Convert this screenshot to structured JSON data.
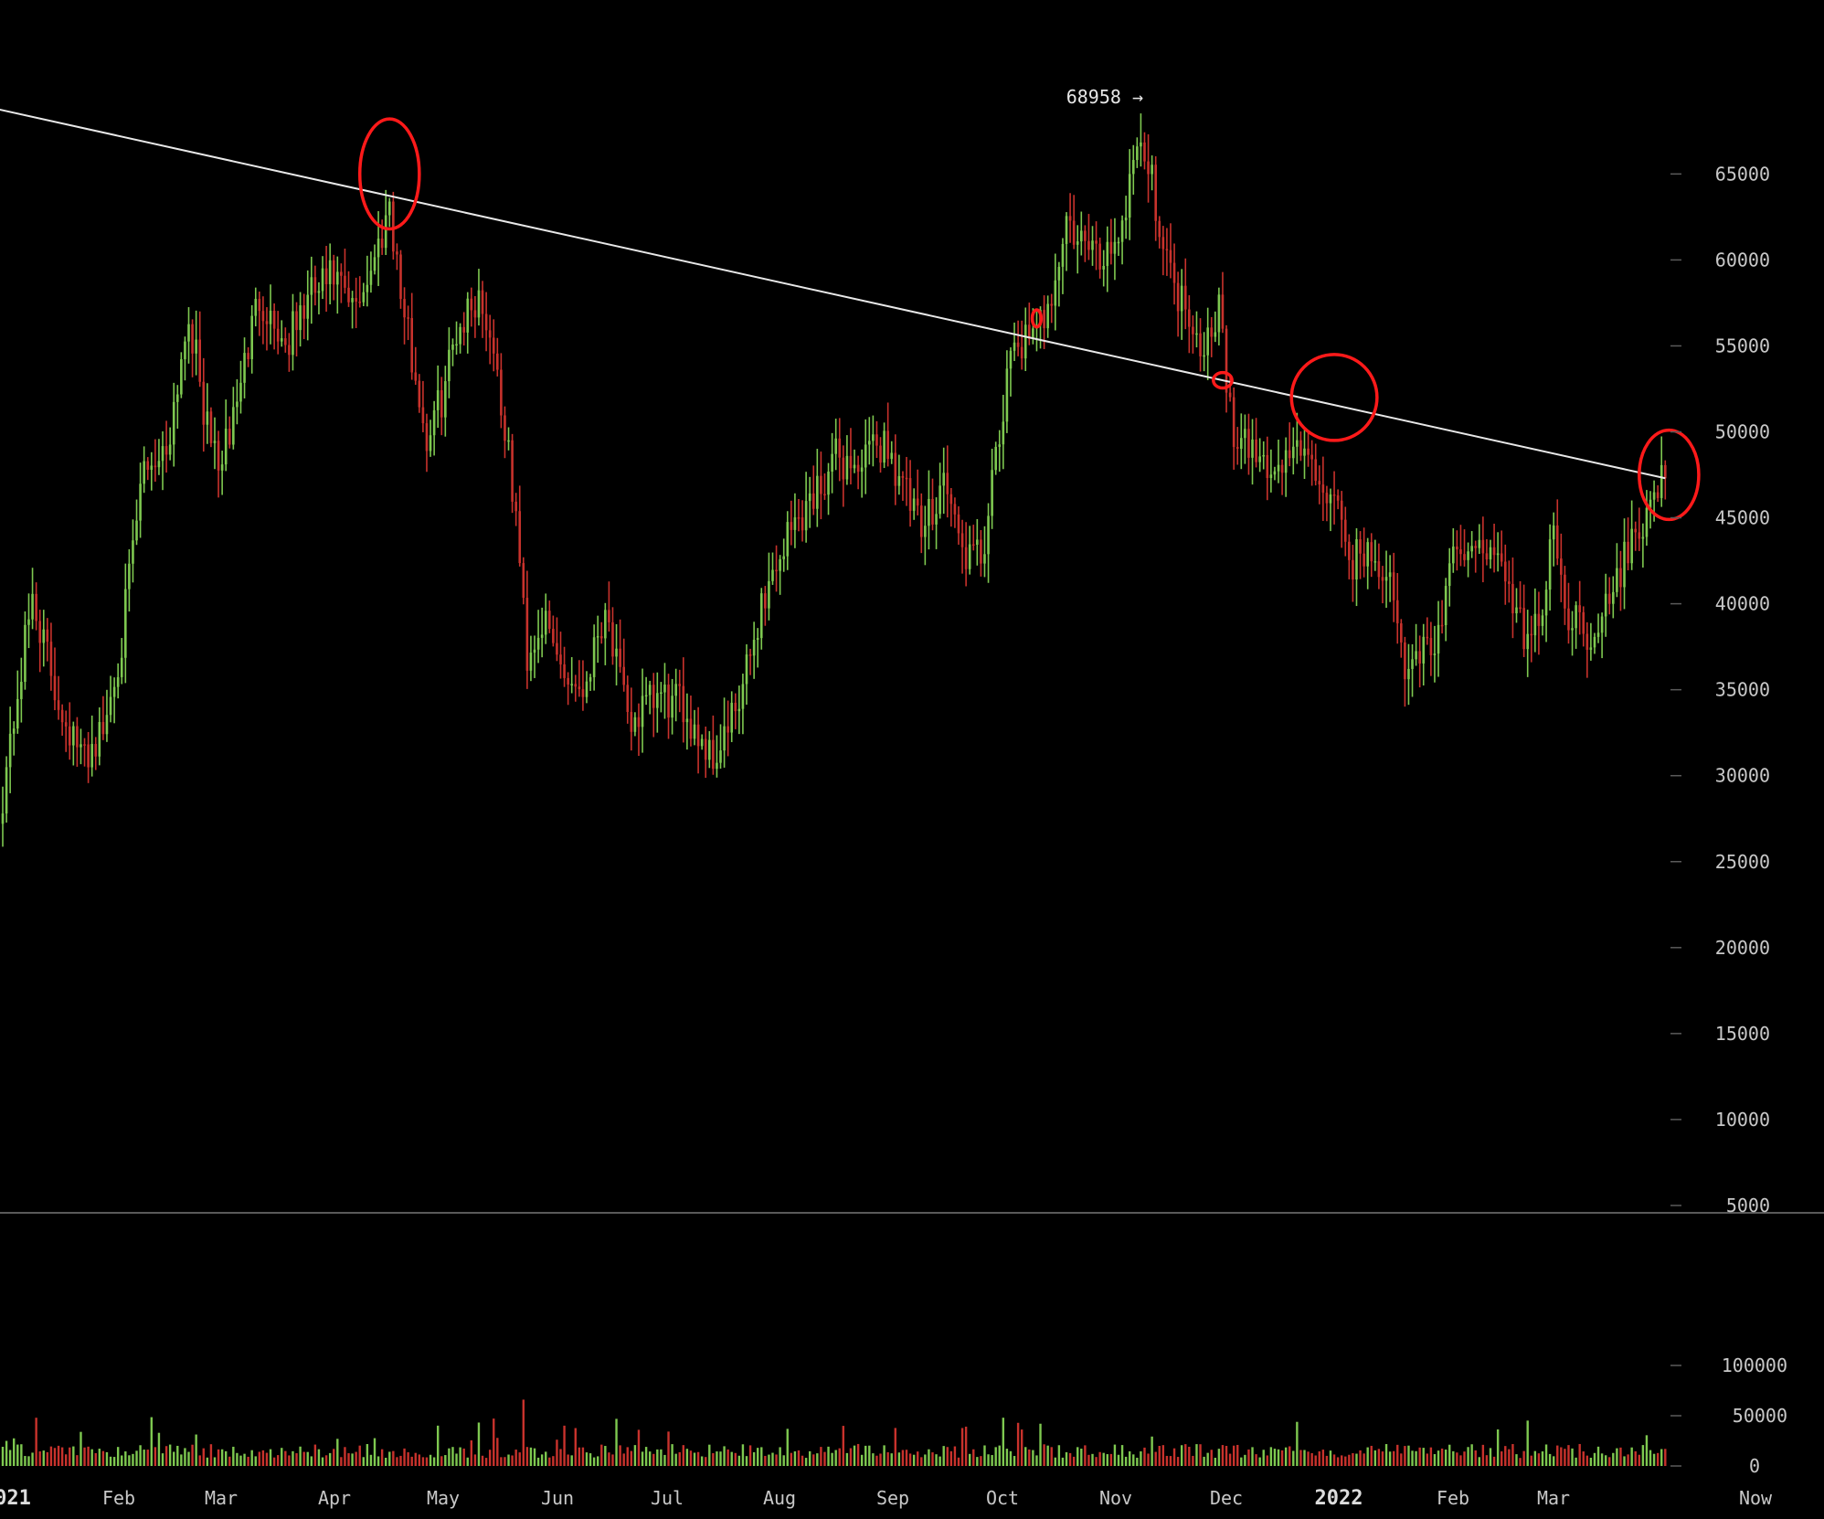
{
  "chart_data": {
    "type": "candlestick",
    "colors": {
      "up": "#7ec850",
      "down": "#c8322c",
      "background": "#000000",
      "axis": "#5a5a5a",
      "trendline": "#e8e8e8",
      "highlight": "#ff1a1a"
    },
    "grid": false,
    "price_axis": {
      "range": [
        0,
        70000
      ],
      "ticks": [
        5000,
        10000,
        15000,
        20000,
        25000,
        30000,
        35000,
        40000,
        45000,
        50000,
        55000,
        60000,
        65000
      ]
    },
    "volume_axis": {
      "range": [
        0,
        120000
      ],
      "ticks": [
        0,
        50000,
        100000
      ]
    },
    "x_axis": {
      "ticks": [
        {
          "label": "021",
          "bold": true
        },
        {
          "label": "Feb",
          "bold": false
        },
        {
          "label": "Mar",
          "bold": false
        },
        {
          "label": "Apr",
          "bold": false
        },
        {
          "label": "May",
          "bold": false
        },
        {
          "label": "Jun",
          "bold": false
        },
        {
          "label": "Jul",
          "bold": false
        },
        {
          "label": "Aug",
          "bold": false
        },
        {
          "label": "Sep",
          "bold": false
        },
        {
          "label": "Oct",
          "bold": false
        },
        {
          "label": "Nov",
          "bold": false
        },
        {
          "label": "Dec",
          "bold": false
        },
        {
          "label": "2022",
          "bold": true
        },
        {
          "label": "Feb",
          "bold": false
        },
        {
          "label": "Mar",
          "bold": false
        },
        {
          "label": "Now",
          "bold": false
        }
      ]
    },
    "annotation": {
      "label": "68958 →",
      "price": 68958
    },
    "price_anchors": [
      {
        "day": 0,
        "price": 29000
      },
      {
        "day": 8,
        "price": 40500
      },
      {
        "day": 14,
        "price": 35000
      },
      {
        "day": 21,
        "price": 31000
      },
      {
        "day": 27,
        "price": 32500
      },
      {
        "day": 32,
        "price": 38000
      },
      {
        "day": 38,
        "price": 48000
      },
      {
        "day": 44,
        "price": 49000
      },
      {
        "day": 50,
        "price": 57000
      },
      {
        "day": 55,
        "price": 50000
      },
      {
        "day": 59,
        "price": 48000
      },
      {
        "day": 63,
        "price": 52000
      },
      {
        "day": 69,
        "price": 58000
      },
      {
        "day": 76,
        "price": 55000
      },
      {
        "day": 83,
        "price": 58000
      },
      {
        "day": 89,
        "price": 59000
      },
      {
        "day": 94,
        "price": 57000
      },
      {
        "day": 100,
        "price": 60000
      },
      {
        "day": 104,
        "price": 63500
      },
      {
        "day": 107,
        "price": 58000
      },
      {
        "day": 114,
        "price": 49500
      },
      {
        "day": 118,
        "price": 52000
      },
      {
        "day": 122,
        "price": 56000
      },
      {
        "day": 128,
        "price": 58000
      },
      {
        "day": 132,
        "price": 55000
      },
      {
        "day": 138,
        "price": 45000
      },
      {
        "day": 141,
        "price": 37000
      },
      {
        "day": 145,
        "price": 39000
      },
      {
        "day": 151,
        "price": 36000
      },
      {
        "day": 156,
        "price": 35000
      },
      {
        "day": 162,
        "price": 40000
      },
      {
        "day": 168,
        "price": 33000
      },
      {
        "day": 176,
        "price": 34500
      },
      {
        "day": 183,
        "price": 34000
      },
      {
        "day": 191,
        "price": 31000
      },
      {
        "day": 198,
        "price": 34000
      },
      {
        "day": 204,
        "price": 40000
      },
      {
        "day": 211,
        "price": 44000
      },
      {
        "day": 217,
        "price": 46000
      },
      {
        "day": 224,
        "price": 48500
      },
      {
        "day": 230,
        "price": 48000
      },
      {
        "day": 237,
        "price": 49500
      },
      {
        "day": 242,
        "price": 47000
      },
      {
        "day": 247,
        "price": 44000
      },
      {
        "day": 253,
        "price": 47500
      },
      {
        "day": 258,
        "price": 43000
      },
      {
        "day": 263,
        "price": 42500
      },
      {
        "day": 267,
        "price": 48000
      },
      {
        "day": 272,
        "price": 55500
      },
      {
        "day": 277,
        "price": 55000
      },
      {
        "day": 281,
        "price": 57500
      },
      {
        "day": 286,
        "price": 62000
      },
      {
        "day": 290,
        "price": 61000
      },
      {
        "day": 295,
        "price": 60000
      },
      {
        "day": 301,
        "price": 62000
      },
      {
        "day": 305,
        "price": 67500
      },
      {
        "day": 309,
        "price": 64500
      },
      {
        "day": 314,
        "price": 59000
      },
      {
        "day": 319,
        "price": 57000
      },
      {
        "day": 323,
        "price": 55000
      },
      {
        "day": 327,
        "price": 57500
      },
      {
        "day": 331,
        "price": 49000
      },
      {
        "day": 336,
        "price": 49000
      },
      {
        "day": 342,
        "price": 47500
      },
      {
        "day": 348,
        "price": 49500
      },
      {
        "day": 352,
        "price": 47500
      },
      {
        "day": 357,
        "price": 46500
      },
      {
        "day": 362,
        "price": 42500
      },
      {
        "day": 367,
        "price": 43000
      },
      {
        "day": 372,
        "price": 42000
      },
      {
        "day": 377,
        "price": 36000
      },
      {
        "day": 382,
        "price": 37500
      },
      {
        "day": 386,
        "price": 38000
      },
      {
        "day": 391,
        "price": 43500
      },
      {
        "day": 396,
        "price": 42500
      },
      {
        "day": 400,
        "price": 44000
      },
      {
        "day": 404,
        "price": 41000
      },
      {
        "day": 409,
        "price": 38500
      },
      {
        "day": 413,
        "price": 38500
      },
      {
        "day": 417,
        "price": 44000
      },
      {
        "day": 421,
        "price": 39500
      },
      {
        "day": 426,
        "price": 38500
      },
      {
        "day": 430,
        "price": 39000
      },
      {
        "day": 435,
        "price": 42000
      },
      {
        "day": 440,
        "price": 44500
      },
      {
        "day": 445,
        "price": 47000
      },
      {
        "day": 447,
        "price": 47300
      }
    ],
    "trendline": {
      "from": {
        "day": -2,
        "price": 68800
      },
      "to": {
        "day": 447,
        "price": 47300
      }
    },
    "highlight_circles": [
      {
        "day": 104,
        "price": 65000,
        "rx_days": 8,
        "ry_price": 3200
      },
      {
        "day": 278,
        "price": 56600,
        "rx_days": 1.2,
        "ry_price": 500
      },
      {
        "day": 328,
        "price": 53000,
        "rx_days": 2.5,
        "ry_price": 450
      },
      {
        "day": 358,
        "price": 52000,
        "rx_days": 11.5,
        "ry_price": 2500
      },
      {
        "day": 448,
        "price": 47500,
        "rx_days": 8,
        "ry_price": 2600
      }
    ]
  }
}
